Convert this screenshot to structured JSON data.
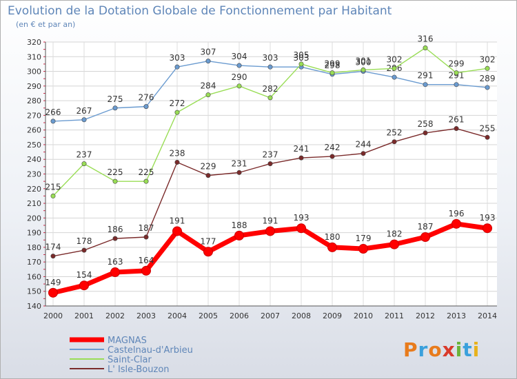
{
  "header": {
    "title": "Evolution de la Dotation Globale de Fonctionnement par Habitant",
    "subtitle": "(en € et par an)"
  },
  "logo": {
    "text": "Proxiti",
    "letters": [
      "P",
      "r",
      "o",
      "x",
      "i",
      "t",
      "i"
    ],
    "colors": [
      "#e87b1c",
      "#3aa0dc",
      "#e87b1c",
      "#d93a2b",
      "#6bb43a",
      "#3aa0dc",
      "#e8b21c"
    ]
  },
  "chart_data": {
    "type": "line",
    "title": "Evolution de la Dotation Globale de Fonctionnement par Habitant",
    "subtitle": "(en € et par an)",
    "x": [
      "2000",
      "2001",
      "2002",
      "2003",
      "2004",
      "2005",
      "2006",
      "2007",
      "2008",
      "2009",
      "2010",
      "2011",
      "2012",
      "2013",
      "2014"
    ],
    "ylim": [
      140,
      320
    ],
    "yticks": [
      140,
      150,
      160,
      170,
      180,
      190,
      200,
      210,
      220,
      230,
      240,
      250,
      260,
      270,
      280,
      290,
      300,
      310,
      320
    ],
    "grid": true,
    "legend": "bottom-left",
    "series": [
      {
        "name": "MAGNAS",
        "color": "#ff0000",
        "values": [
          149,
          154,
          163,
          164,
          191,
          177,
          188,
          191,
          193,
          180,
          179,
          182,
          187,
          196,
          193
        ]
      },
      {
        "name": "Castelnau-d'Arbieu",
        "color": "#6a9bd0",
        "values": [
          266,
          267,
          275,
          276,
          303,
          307,
          304,
          303,
          303,
          298,
          300,
          296,
          291,
          291,
          289
        ]
      },
      {
        "name": "Saint-Clar",
        "color": "#99dd55",
        "values": [
          215,
          237,
          225,
          225,
          272,
          284,
          290,
          282,
          305,
          299,
          301,
          302,
          316,
          299,
          302
        ]
      },
      {
        "name": "L' Isle-Bouzon",
        "color": "#7a2a2a",
        "values": [
          174,
          178,
          186,
          187,
          238,
          229,
          231,
          237,
          241,
          242,
          244,
          252,
          258,
          261,
          255
        ]
      }
    ]
  }
}
